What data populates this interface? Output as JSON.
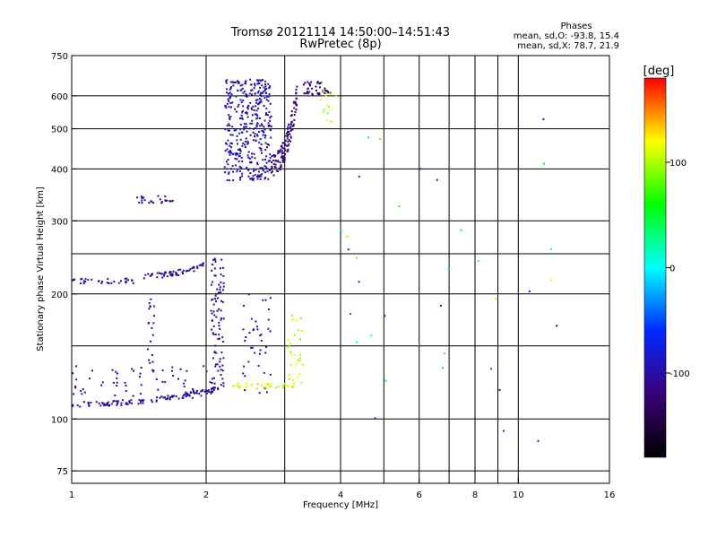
{
  "chart_data": {
    "type": "scatter",
    "title": "Tromsø 20121114 14:50:00–14:51:43",
    "subtitle": "RwPretec (8p)",
    "xlabel": "Frequency [MHz]",
    "ylabel": "Stationary phase Virtual Height [km]",
    "x_scale": "log",
    "y_scale": "log",
    "xlim": [
      1,
      16
    ],
    "ylim": [
      70,
      750
    ],
    "x_ticks": [
      1,
      2,
      4,
      6,
      8,
      10,
      16
    ],
    "x_ticklabels": [
      "1",
      "2",
      "4",
      "6",
      "8",
      "10",
      "16"
    ],
    "y_ticks": [
      75,
      100,
      200,
      300,
      400,
      500,
      600,
      750
    ],
    "y_ticklabels": [
      "75",
      "100",
      "200",
      "300",
      "400",
      "500",
      "600",
      "750"
    ],
    "grid_x_extra": [
      3,
      5,
      7,
      9
    ],
    "grid_y_extra": [
      150,
      250
    ],
    "grid": true,
    "phases_header": "Phases",
    "phase_stats": [
      "mean, sd,O: -93.8, 15.4",
      "mean, sd,X:  78.7, 21.9"
    ],
    "colorbar": {
      "label": "[deg]",
      "ticks": [
        -100,
        0,
        100
      ],
      "range": [
        -180,
        180
      ],
      "colors": [
        "#000000",
        "#3a007a",
        "#0028ff",
        "#00ffff",
        "#00ff00",
        "#ffff00",
        "#ff0000"
      ]
    },
    "point_groups": [
      {
        "name": "O-trace low",
        "fmin": 1.0,
        "fmax": 2.1,
        "hmin": 107,
        "hmax": 120,
        "phase": -105,
        "n": 120,
        "shape": "rising"
      },
      {
        "name": "O-trace low scatter",
        "fmin": 1.0,
        "fmax": 2.1,
        "hmin": 112,
        "hmax": 135,
        "phase": -95,
        "n": 60,
        "shape": "band"
      },
      {
        "name": "Column 1.5",
        "fmin": 1.48,
        "fmax": 1.53,
        "hmin": 130,
        "hmax": 195,
        "phase": -100,
        "n": 20,
        "shape": "band"
      },
      {
        "name": "Column 2.1",
        "fmin": 2.05,
        "fmax": 2.2,
        "hmin": 115,
        "hmax": 250,
        "phase": -105,
        "n": 90,
        "shape": "band"
      },
      {
        "name": "Column 2.6",
        "fmin": 2.4,
        "fmax": 2.8,
        "hmin": 115,
        "hmax": 200,
        "phase": -100,
        "n": 40,
        "shape": "band"
      },
      {
        "name": "X low yellow",
        "fmin": 2.3,
        "fmax": 3.2,
        "hmin": 118,
        "hmax": 122,
        "phase": 110,
        "n": 40,
        "shape": "band"
      },
      {
        "name": "X mid yellow",
        "fmin": 3.05,
        "fmax": 3.3,
        "hmin": 122,
        "hmax": 180,
        "phase": 105,
        "n": 30,
        "shape": "band"
      },
      {
        "name": "F trace 215",
        "fmin": 1.0,
        "fmax": 1.4,
        "hmin": 212,
        "hmax": 218,
        "phase": -105,
        "n": 35,
        "shape": "band"
      },
      {
        "name": "F trace 225",
        "fmin": 1.45,
        "fmax": 2.1,
        "hmin": 218,
        "hmax": 245,
        "phase": -105,
        "n": 60,
        "shape": "rising"
      },
      {
        "name": "Trace 330",
        "fmin": 1.4,
        "fmax": 1.7,
        "hmin": 330,
        "hmax": 345,
        "phase": -105,
        "n": 25,
        "shape": "band"
      },
      {
        "name": "F2 cloud",
        "fmin": 2.2,
        "fmax": 2.8,
        "hmin": 375,
        "hmax": 660,
        "phase": -95,
        "n": 380,
        "shape": "band"
      },
      {
        "name": "F2 trace",
        "fmin": 2.8,
        "fmax": 3.2,
        "hmin": 380,
        "hmax": 650,
        "phase": -120,
        "n": 120,
        "shape": "rising"
      },
      {
        "name": "F2 top",
        "fmin": 3.3,
        "fmax": 3.8,
        "hmin": 600,
        "hmax": 650,
        "phase": -125,
        "n": 40,
        "shape": "band"
      },
      {
        "name": "X top yellow",
        "fmin": 3.6,
        "fmax": 3.95,
        "hmin": 520,
        "hmax": 620,
        "phase": 105,
        "n": 14,
        "shape": "band"
      },
      {
        "name": "Scattered",
        "fmin": 4.0,
        "fmax": 13.0,
        "hmin": 80,
        "hmax": 530,
        "phase": -20,
        "n": 35,
        "shape": "random"
      }
    ]
  }
}
